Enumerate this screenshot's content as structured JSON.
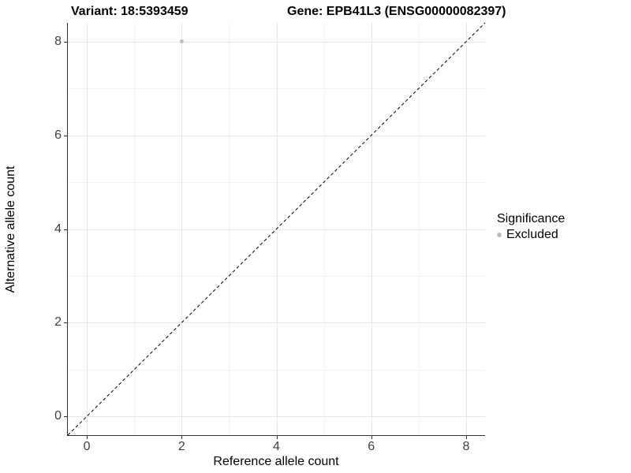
{
  "header": {
    "variant_title": "Variant: 18:5393459",
    "gene_title": "Gene: EPB41L3 (ENSG00000082397)"
  },
  "legend": {
    "title": "Significance",
    "items": [
      {
        "label": "Excluded",
        "color": "#bdbdbd"
      }
    ]
  },
  "chart_data": {
    "type": "scatter",
    "title": "Variant: 18:5393459    Gene: EPB41L3 (ENSG00000082397)",
    "xlabel": "Reference allele count",
    "ylabel": "Alternative allele count",
    "x_ticks": [
      0,
      2,
      4,
      6,
      8
    ],
    "y_ticks": [
      0,
      2,
      4,
      6,
      8
    ],
    "x_minor_ticks": [
      1,
      3,
      5,
      7
    ],
    "y_minor_ticks": [
      1,
      3,
      5,
      7
    ],
    "xlim": [
      -0.4,
      8.4
    ],
    "ylim": [
      -0.4,
      8.4
    ],
    "grid": "major-and-minor",
    "legend_position": "right",
    "series": [
      {
        "name": "Excluded",
        "significance": "Excluded",
        "color": "#bdbdbd",
        "points": [
          {
            "x": 2,
            "y": 8
          }
        ]
      }
    ],
    "reference_line": {
      "type": "identity",
      "slope": 1,
      "intercept": 0,
      "style": "dashed",
      "color": "#000000"
    }
  },
  "colors": {
    "background": "#ffffff",
    "axis_line": "#333333",
    "grid_major": "#e6e6e6",
    "grid_minor": "#f3f3f3",
    "tick_label": "#404040",
    "excluded_point": "#bdbdbd"
  }
}
